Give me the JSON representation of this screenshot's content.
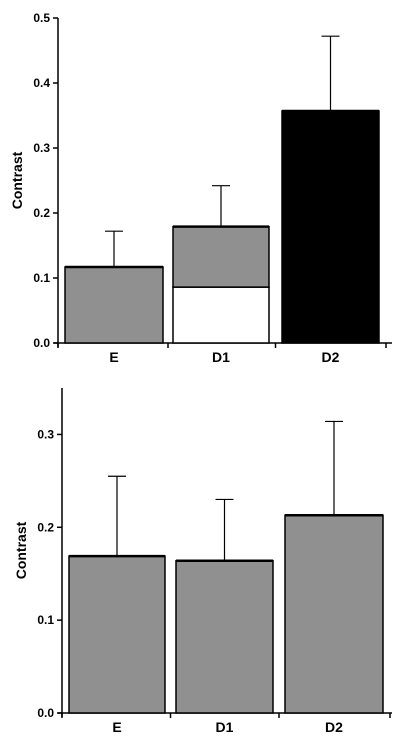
{
  "chart_data": [
    {
      "type": "bar",
      "stacked": true,
      "ylabel": "Contrast",
      "xlabel": "",
      "title": "",
      "ylim": [
        0,
        0.5
      ],
      "yticks": [
        "0.0",
        "0.1",
        "0.2",
        "0.3",
        "0.4",
        "0.5"
      ],
      "categories": [
        "E",
        "D1",
        "D2"
      ],
      "bars": [
        {
          "category": "E",
          "segments": [
            {
              "value": 0.117,
              "color": "#909090"
            }
          ],
          "error": 0.172
        },
        {
          "category": "D1",
          "segments": [
            {
              "value": 0.086,
              "color": "#ffffff"
            },
            {
              "value": 0.093,
              "color": "#909090"
            }
          ],
          "error": 0.242
        },
        {
          "category": "D2",
          "segments": [
            {
              "value": 0.357,
              "color": "#000000"
            }
          ],
          "error": 0.472
        }
      ],
      "grid": false
    },
    {
      "type": "bar",
      "ylabel": "Contrast",
      "xlabel": "",
      "title": "",
      "ylim": [
        0,
        0.35
      ],
      "yticks": [
        "0.0",
        "0.1",
        "0.2",
        "0.3"
      ],
      "categories": [
        "E",
        "D1",
        "D2"
      ],
      "bars": [
        {
          "category": "E",
          "segments": [
            {
              "value": 0.169,
              "color": "#909090"
            }
          ],
          "error": 0.255
        },
        {
          "category": "D1",
          "segments": [
            {
              "value": 0.164,
              "color": "#909090"
            }
          ],
          "error": 0.23
        },
        {
          "category": "D2",
          "segments": [
            {
              "value": 0.213,
              "color": "#909090"
            }
          ],
          "error": 0.314
        }
      ],
      "grid": false
    }
  ]
}
